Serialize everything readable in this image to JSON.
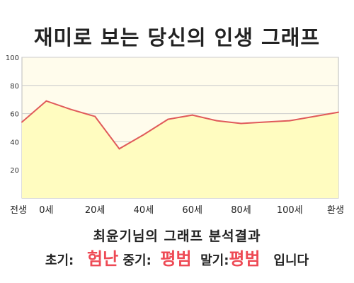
{
  "chart_data": {
    "type": "area",
    "title": "재미로 보는 당신의 인생 그래프",
    "categories": [
      "전생",
      "0세",
      "20세",
      "40세",
      "60세",
      "80세",
      "100세",
      "환생"
    ],
    "x": [
      "전생",
      "0세",
      "",
      "20세",
      "",
      "40세",
      "",
      "60세",
      "",
      "80세",
      "",
      "100세",
      "",
      "환생"
    ],
    "series": [
      {
        "values": [
          54,
          69,
          63,
          58,
          35,
          45,
          56,
          59,
          55,
          53,
          54,
          55,
          58,
          61
        ]
      }
    ],
    "ylim": [
      0,
      100
    ],
    "yticks": [
      20,
      40,
      60,
      80,
      100
    ],
    "grid": true,
    "colors": {
      "line": "#e05a5a",
      "fill": "#fffcc0",
      "plot_bg": "#fffcec",
      "grid": "#cccccc"
    }
  },
  "result": {
    "title": "최윤기님의 그래프 분석결과",
    "early_label": "초기:",
    "early_value": "험난",
    "mid_label": "중기:",
    "mid_value": "평범",
    "late_label": "말기:",
    "late_value": "평범",
    "suffix": "입니다"
  }
}
